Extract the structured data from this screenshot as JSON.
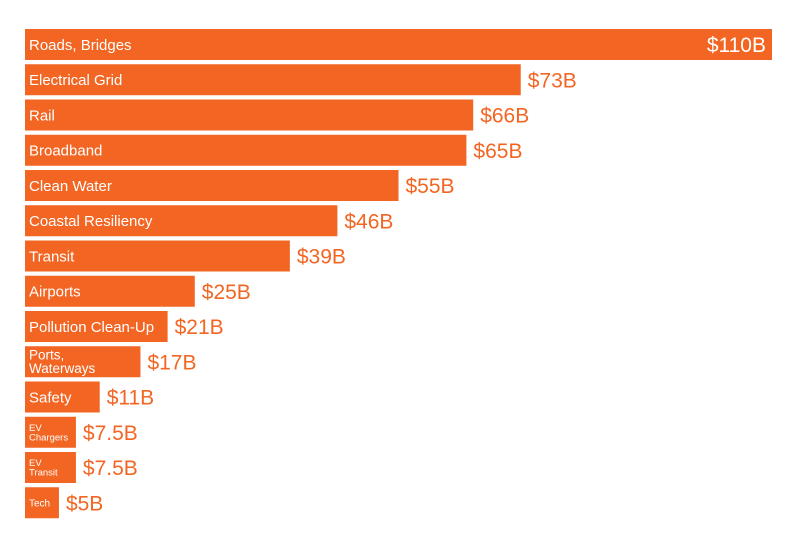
{
  "chart_data": {
    "type": "bar",
    "orientation": "horizontal",
    "categories": [
      "Roads, Bridges",
      "Electrical Grid",
      "Rail",
      "Broadband",
      "Clean Water",
      "Coastal Resiliency",
      "Transit",
      "Airports",
      "Pollution Clean-Up",
      "Ports, Waterways",
      "Safety",
      "EV Chargers",
      "EV Transit",
      "Tech"
    ],
    "category_lines": [
      [
        "Roads, Bridges"
      ],
      [
        "Electrical Grid"
      ],
      [
        "Rail"
      ],
      [
        "Broadband"
      ],
      [
        "Clean Water"
      ],
      [
        "Coastal Resiliency"
      ],
      [
        "Transit"
      ],
      [
        "Airports"
      ],
      [
        "Pollution Clean-Up"
      ],
      [
        "Ports,",
        "Waterways"
      ],
      [
        "Safety"
      ],
      [
        "EV",
        "Chargers"
      ],
      [
        "EV",
        "Transit"
      ],
      [
        "Tech"
      ]
    ],
    "values": [
      110,
      73,
      66,
      65,
      55,
      46,
      39,
      25,
      21,
      17,
      11,
      7.5,
      7.5,
      5
    ],
    "value_labels": [
      "$110B",
      "$73B",
      "$66B",
      "$65B",
      "$55B",
      "$46B",
      "$39B",
      "$25B",
      "$21B",
      "$17B",
      "$11B",
      "$7.5B",
      "$7.5B",
      "$5B"
    ],
    "value_label_inside": [
      true,
      false,
      false,
      false,
      false,
      false,
      false,
      false,
      false,
      false,
      false,
      false,
      false,
      false
    ],
    "unit": "billions of dollars",
    "xlim": [
      0,
      110
    ],
    "title": "",
    "xlabel": "",
    "ylabel": "",
    "grid": false,
    "legend": "none"
  },
  "colors": {
    "bar": "#f26522",
    "bar_text": "#ffffff",
    "value_text": "#f26522",
    "background": "#ffffff"
  }
}
